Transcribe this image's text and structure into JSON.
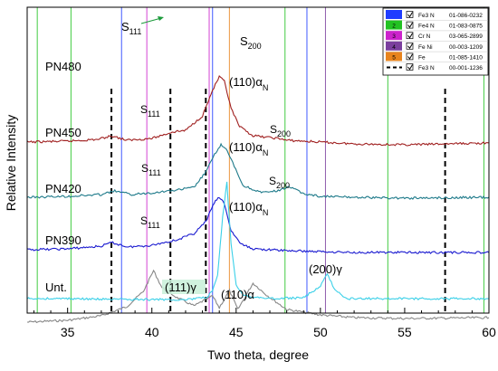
{
  "chart_data": {
    "type": "line",
    "title": "",
    "xlabel": "Two theta, degree",
    "ylabel": "Relative Intensity",
    "xlim": [
      32.6,
      60
    ],
    "x_ticks": [
      "35",
      "40",
      "45",
      "50",
      "55",
      "60"
    ],
    "x_tick_values": [
      35,
      40,
      45,
      50,
      55,
      60
    ],
    "y_ticks_shown": false,
    "grid": false,
    "legend_position": "top-right",
    "legend": [
      {
        "num": "",
        "swatch": "#1f3cff",
        "checked": true,
        "name": "Fe3 N",
        "code": "01-086-0232",
        "dashed": false
      },
      {
        "num": "2",
        "swatch": "#22c222",
        "checked": true,
        "name": "Fe4 N",
        "code": "01-083-0875",
        "dashed": false
      },
      {
        "num": "3",
        "swatch": "#cc22cc",
        "checked": true,
        "name": "Cr N",
        "code": "03-065-2899",
        "dashed": false
      },
      {
        "num": "4",
        "swatch": "#7b3f9e",
        "checked": true,
        "name": "Fe Ni",
        "code": "00-003-1209",
        "dashed": false
      },
      {
        "num": "5",
        "swatch": "#e8841e",
        "checked": true,
        "name": "Fe",
        "code": "01-085-1410",
        "dashed": false
      },
      {
        "num": "",
        "swatch": "#000000",
        "checked": true,
        "name": "Fe3 N",
        "code": "00-001-1236",
        "dashed": true
      }
    ],
    "reference_lines": [
      {
        "x": 33.2,
        "color": "#22c222"
      },
      {
        "x": 35.2,
        "color": "#22c222"
      },
      {
        "x": 38.2,
        "color": "#1f3cff"
      },
      {
        "x": 39.7,
        "color": "#cc22cc"
      },
      {
        "x": 43.4,
        "color": "#cc22cc"
      },
      {
        "x": 43.6,
        "color": "#1f3cff"
      },
      {
        "x": 44.6,
        "color": "#e8841e"
      },
      {
        "x": 47.9,
        "color": "#22c222"
      },
      {
        "x": 49.2,
        "color": "#1f3cff"
      },
      {
        "x": 50.3,
        "color": "#7b3f9e"
      },
      {
        "x": 54.0,
        "color": "#22c222"
      },
      {
        "x": 59.7,
        "color": "#22c222"
      }
    ],
    "dashed_reference_lines": [
      37.6,
      41.1,
      43.2,
      57.4
    ],
    "series": [
      {
        "name": "PN480",
        "color": "#888888",
        "x": [
          32.6,
          35,
          37,
          38.5,
          39.5,
          40.1,
          40.6,
          41.5,
          42.5,
          43.6,
          44.0,
          44.6,
          45.1,
          46.0,
          46.8,
          48,
          50,
          52,
          55,
          60
        ],
        "y": [
          356,
          354,
          349,
          339,
          322,
          299,
          318,
          329,
          338,
          327,
          340,
          321,
          342,
          313,
          326,
          342,
          348,
          351,
          352,
          351
        ]
      },
      {
        "name": "PN450",
        "color": "#a02020",
        "x": [
          32.6,
          35,
          36.8,
          37.6,
          38.5,
          40,
          41.2,
          42,
          43,
          43.6,
          44.0,
          44.3,
          44.7,
          45.2,
          46,
          47.5,
          48,
          50,
          52,
          55,
          60
        ],
        "y": [
          157,
          156,
          154,
          150,
          155,
          153,
          146,
          144,
          128,
          100,
          85,
          90,
          120,
          140,
          150,
          153,
          155,
          157,
          159,
          160,
          158
        ]
      },
      {
        "name": "PN420",
        "color": "#1e7a8a",
        "x": [
          32.6,
          35,
          37,
          37.8,
          38.8,
          40,
          41.5,
          42.5,
          43.2,
          43.8,
          44.1,
          44.4,
          44.8,
          45.4,
          46.5,
          47.5,
          48.1,
          49,
          50,
          52,
          55,
          60
        ],
        "y": [
          218,
          217,
          215,
          211,
          215,
          213,
          210,
          207,
          190,
          168,
          160,
          165,
          180,
          205,
          213,
          211,
          206,
          214,
          217,
          218,
          219,
          218
        ]
      },
      {
        "name": "PN390",
        "color": "#1a1ad0",
        "x": [
          32.6,
          35,
          37,
          37.6,
          38.6,
          40,
          41.5,
          42.5,
          43.2,
          43.7,
          44.0,
          44.3,
          44.7,
          45.3,
          46,
          48,
          50,
          52,
          55,
          60
        ],
        "y": [
          276,
          275,
          272,
          268,
          273,
          271,
          265,
          258,
          245,
          224,
          218,
          225,
          255,
          270,
          275,
          277,
          278,
          279,
          279,
          279
        ]
      },
      {
        "name": "Unt.",
        "color": "#3ad0e8",
        "x": [
          32.6,
          35,
          38,
          42,
          43.2,
          43.6,
          43.9,
          44.2,
          44.45,
          44.7,
          45.0,
          45.5,
          47,
          49,
          50.0,
          50.4,
          50.8,
          51.5,
          55,
          60
        ],
        "y": [
          330,
          330,
          331,
          331,
          329,
          322,
          305,
          240,
          202,
          270,
          315,
          327,
          330,
          329,
          316,
          303,
          318,
          330,
          330,
          330
        ]
      }
    ]
  },
  "labels": {
    "pn480": "PN480",
    "pn450": "PN450",
    "pn420": "PN420",
    "pn390": "PN390",
    "unt": "Unt.",
    "s111_a_base": "S",
    "s111_a_sub": "111",
    "s200_a_base": "S",
    "s200_a_sub": "200",
    "s111_b_base": "S",
    "s111_b_sub": "111",
    "s200_b_base": "S",
    "s200_b_sub": "200",
    "s111_c_base": "S",
    "s111_c_sub": "111",
    "s200_c_base": "S",
    "s200_c_sub": "200",
    "s111_d_base": "S",
    "s111_d_sub": "111",
    "alpha_n_a_base": "(110)α",
    "alpha_n_a_sub": "N",
    "alpha_n_b_base": "(110)α",
    "alpha_n_b_sub": "N",
    "alpha_n_c_base": "(110)α",
    "alpha_n_c_sub": "N",
    "gamma111": "(111)γ",
    "alpha110": "(110)α",
    "gamma200": "(200)γ"
  }
}
